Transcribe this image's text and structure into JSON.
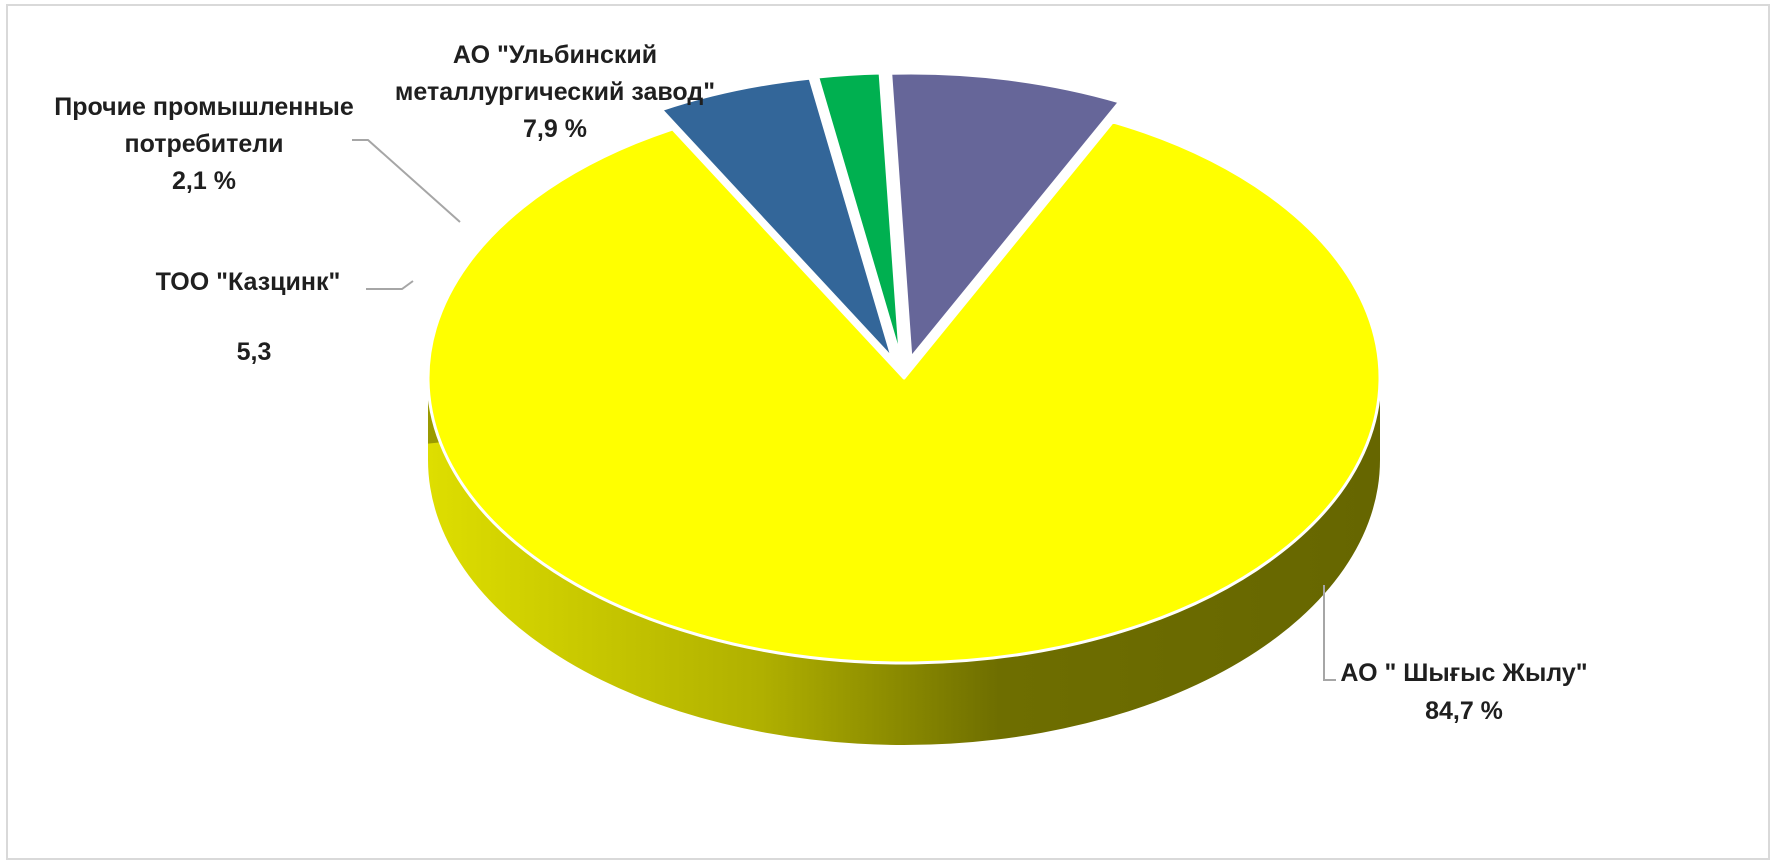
{
  "chart_data": {
    "type": "pie",
    "title": "",
    "slices": [
      {
        "label_lines": [
          "АО \" Шығыс Жылу\""
        ],
        "value_label": "84,7 %",
        "value": 84.7,
        "color": "#ffff00",
        "side_color": "#9a9a00"
      },
      {
        "label_lines": [
          "ТОО \"Казцинк\""
        ],
        "value_label": "5,3",
        "value": 5.3,
        "color": "#336699",
        "side_color": "#1e344f"
      },
      {
        "label_lines": [
          "Прочие промышленные",
          "потребители"
        ],
        "value_label": "2,1 %",
        "value": 2.1,
        "color": "#00b050",
        "side_color": "#007a38"
      },
      {
        "label_lines": [
          "АО \"Ульбинский",
          "металлургический завод\""
        ],
        "value_label": "7,9 %",
        "value": 7.9,
        "color": "#666699",
        "side_color": "#44446a"
      }
    ],
    "legend": "none",
    "style": "3d-exploded"
  }
}
